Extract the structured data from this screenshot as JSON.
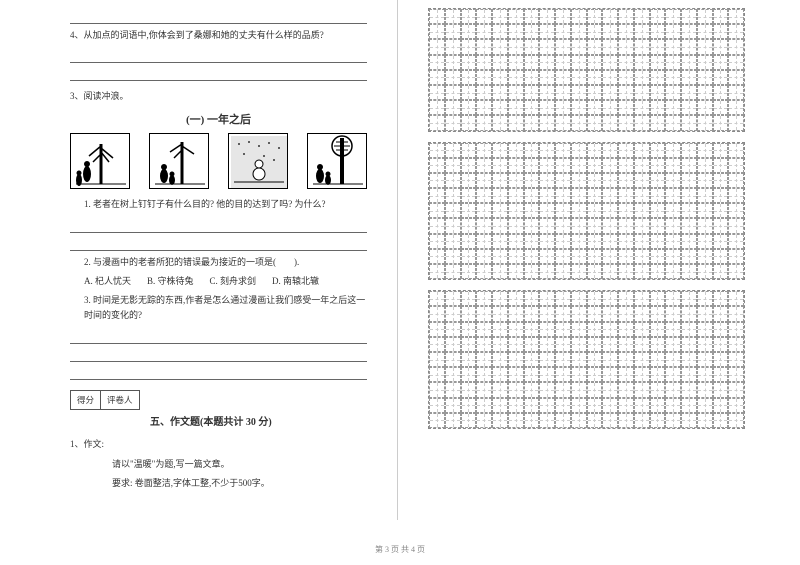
{
  "left": {
    "q4": "4、从加点的词语中,你体会到了桑娜和她的丈夫有什么样的品质?",
    "reading_intro": "3、阅读冲浪。",
    "comic_title": "(一) 一年之后",
    "sub_q1": "1. 老者在树上钉钉子有什么目的? 他的目的达到了吗? 为什么?",
    "sub_q2_stem": "2. 与漫画中的老者所犯的错误最为接近的一项是(　　).",
    "options": {
      "a": "A. 杞人忧天",
      "b": "B. 守株待兔",
      "c": "C. 刻舟求剑",
      "d": "D. 南辕北辙"
    },
    "sub_q3": "3. 时间是无影无踪的东西,作者是怎么通过漫画让我们感受一年之后这一时间的变化的?",
    "score_labels": {
      "score": "得分",
      "reviewer": "评卷人"
    },
    "section_title": "五、作文题(本题共计 30 分)",
    "essay_num": "1、作文:",
    "essay_prompt": "请以\"温暖\"为题,写一篇文章。",
    "essay_req": "要求: 卷面整洁,字体工整,不少于500字。"
  },
  "grid": {
    "blocks": 3,
    "rows_per_block": [
      8,
      9,
      9
    ],
    "cols": 20,
    "cell_border_color": "#999999"
  },
  "footer": "第 3 页 共 4 页"
}
